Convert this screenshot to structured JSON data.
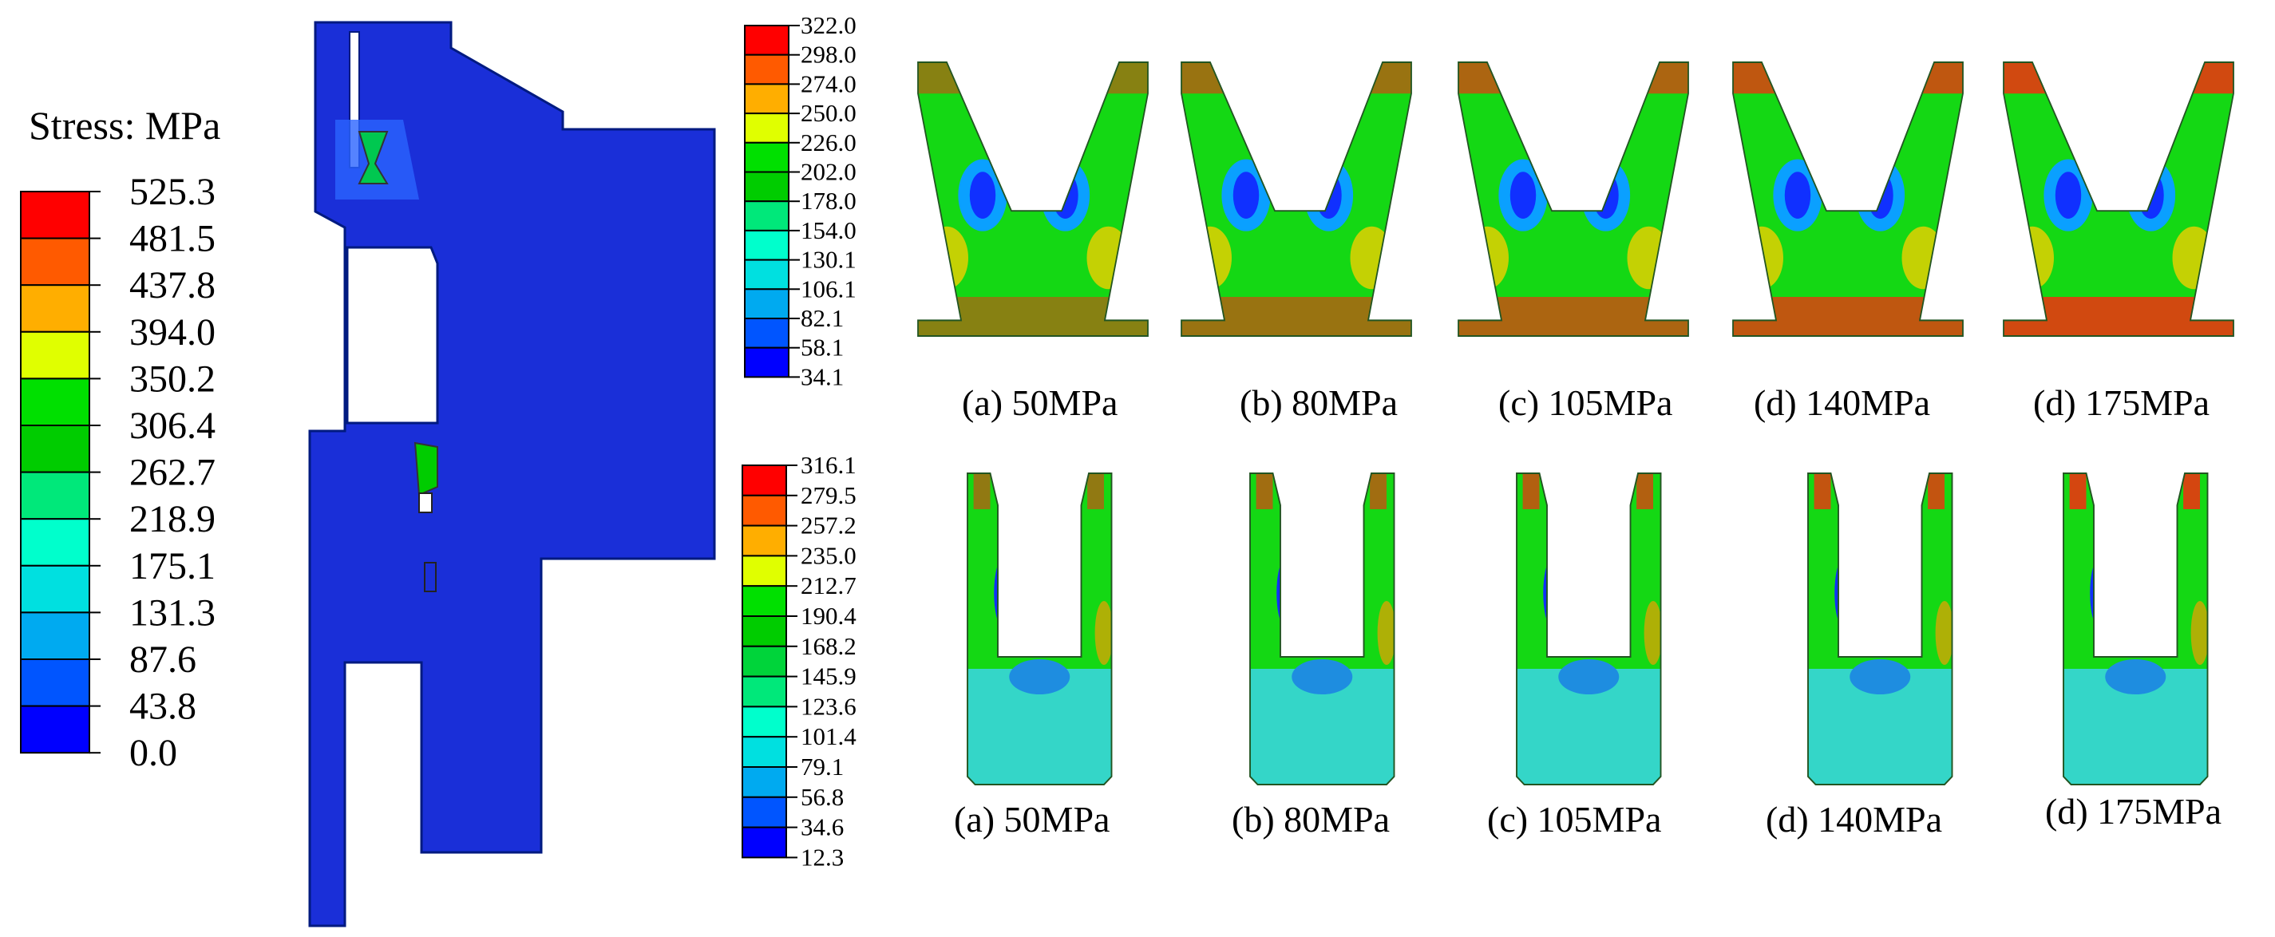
{
  "main_legend": {
    "title": "Stress: MPa",
    "ticks": [
      "525.3",
      "481.5",
      "437.8",
      "394.0",
      "350.2",
      "306.4",
      "262.7",
      "218.9",
      "175.1",
      "131.3",
      "87.6",
      "43.8",
      "0.0"
    ]
  },
  "legend_top": {
    "ticks": [
      "322.0",
      "298.0",
      "274.0",
      "250.0",
      "226.0",
      "202.0",
      "178.0",
      "154.0",
      "130.1",
      "106.1",
      "82.1",
      "58.1",
      "34.1"
    ]
  },
  "legend_bottom": {
    "ticks": [
      "316.1",
      "279.5",
      "257.2",
      "235.0",
      "212.7",
      "190.4",
      "168.2",
      "145.9",
      "123.6",
      "101.4",
      "79.1",
      "56.8",
      "34.6",
      "12.3"
    ]
  },
  "top_row_captions": [
    "(a) 50MPa",
    "(b) 80MPa",
    "(c) 105MPa",
    "(d) 140MPa",
    "(d) 175MPa"
  ],
  "bottom_row_captions": [
    "(a) 50MPa",
    "(b) 80MPa",
    "(c) 105MPa",
    "(d) 140MPa",
    "(d) 175MPa"
  ],
  "colors": {
    "scale": [
      "#ff0000",
      "#ff5a00",
      "#ffae00",
      "#e0ff00",
      "#00e000",
      "#00cc00",
      "#00d43a",
      "#00e87a",
      "#00ffcc",
      "#00e0e0",
      "#00aaf0",
      "#0055ff",
      "#0000ff"
    ],
    "part_blue": "#1530e0"
  }
}
